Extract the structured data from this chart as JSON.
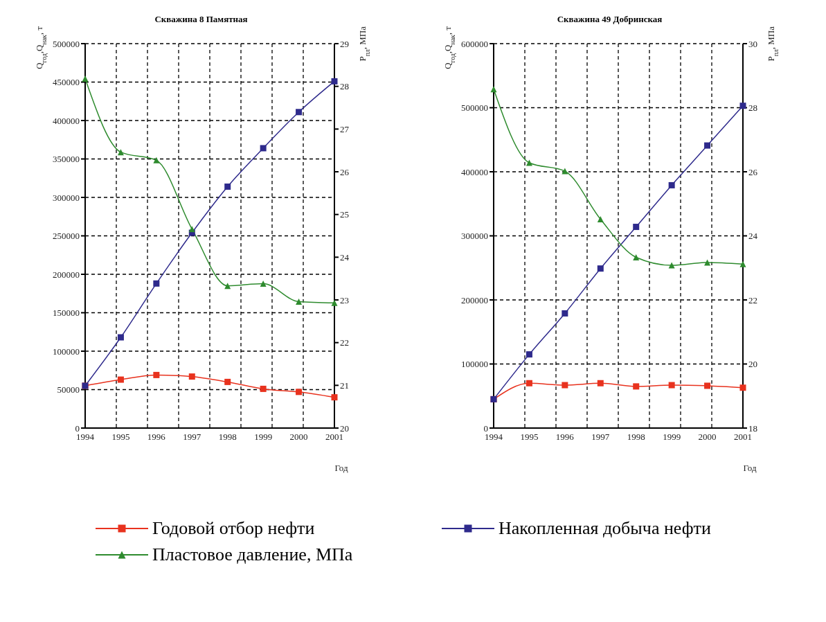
{
  "chart_data": [
    {
      "type": "line",
      "title": "Скважина 8 Памятная",
      "xlabel": "Год",
      "ylabel": "Q$_{год}$,Q$_{нак}$, т",
      "y2label": "P$_{пл}$, МПа",
      "categories": [
        "1994",
        "1995",
        "1996",
        "1997",
        "1998",
        "1999",
        "2000",
        "2001"
      ],
      "ylim": [
        0,
        500000
      ],
      "yticks": [
        0,
        50000,
        100000,
        150000,
        200000,
        250000,
        300000,
        350000,
        400000,
        450000,
        500000
      ],
      "y2lim": [
        20,
        29
      ],
      "y2ticks": [
        20,
        21,
        22,
        23,
        24,
        25,
        26,
        27,
        28,
        29
      ],
      "grid": true,
      "legend": "bottom",
      "line_style": "solid",
      "series": [
        {
          "name": "Годовой отбор нефти",
          "color": "#e8321e",
          "marker": "square",
          "values": [
            55000,
            63000,
            69000,
            67000,
            60000,
            51000,
            47000,
            40000
          ]
        },
        {
          "name": "Накопленная добыча нефти",
          "color": "#2e2a8c",
          "marker": "square",
          "values": [
            55000,
            118000,
            188000,
            254000,
            314000,
            364000,
            411000,
            451000
          ]
        },
        {
          "name": "Пластовое давление, МПа",
          "color": "#2e8b2e",
          "marker": "triangle",
          "axis": "y2",
          "values": [
            28.18,
            26.46,
            26.27,
            24.66,
            23.33,
            23.38,
            22.96,
            22.93
          ]
        }
      ]
    },
    {
      "type": "line",
      "title": "Скважина 49 Добринская",
      "xlabel": "Год",
      "ylabel": "Q$_{год}$,Q$_{нак}$, т",
      "y2label": "P$_{пл}$, МПа",
      "categories": [
        "1994",
        "1995",
        "1996",
        "1997",
        "1998",
        "1999",
        "2000",
        "2001"
      ],
      "ylim": [
        0,
        600000
      ],
      "yticks": [
        0,
        100000,
        200000,
        300000,
        400000,
        500000,
        600000
      ],
      "y2lim": [
        18,
        30
      ],
      "y2ticks": [
        18,
        20,
        22,
        24,
        26,
        28,
        30
      ],
      "grid": true,
      "line_style": "solid",
      "series": [
        {
          "color": "#e8321e",
          "marker": "square",
          "values": [
            45000,
            70000,
            67000,
            70000,
            65000,
            67000,
            66000,
            63000
          ]
        },
        {
          "color": "#2e2a8c",
          "marker": "square",
          "values": [
            45000,
            115000,
            179000,
            249000,
            314000,
            379000,
            441000,
            503000
          ]
        },
        {
          "color": "#2e8b2e",
          "marker": "triangle",
          "axis": "y2",
          "values": [
            28.58,
            26.28,
            26.02,
            24.52,
            23.33,
            23.08,
            23.17,
            23.12
          ]
        }
      ]
    }
  ]
}
